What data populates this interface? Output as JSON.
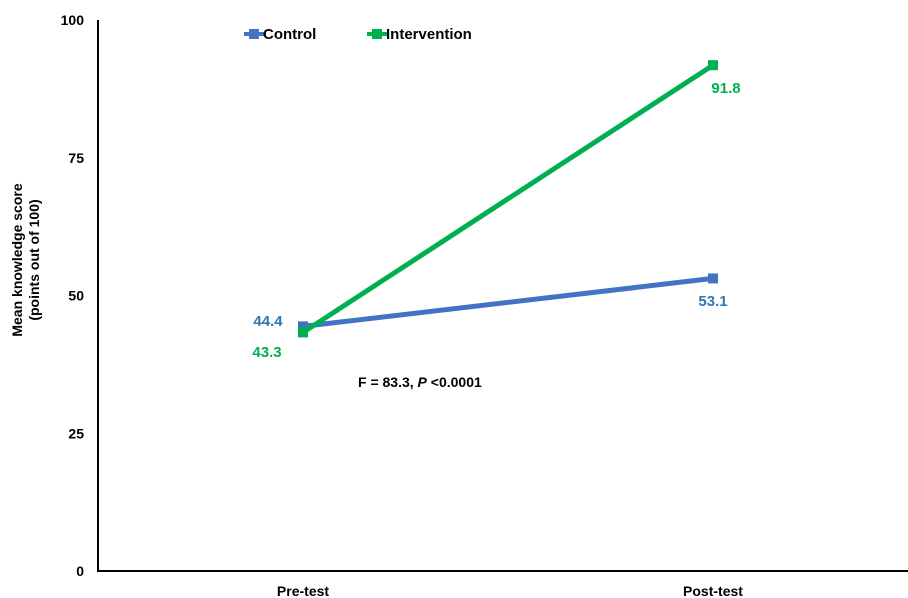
{
  "chart_data": {
    "type": "line",
    "x": [
      "Pre-test",
      "Post-test"
    ],
    "ylabel": [
      "Mean knowledge score",
      "(points out of 100)"
    ],
    "ylim": [
      0,
      100
    ],
    "yticks": [
      0,
      25,
      50,
      75,
      100
    ],
    "grid": false,
    "legend": "top-left",
    "annotation": {
      "prefix": "F = 83.3, ",
      "italic": "P",
      "suffix": " <0.0001"
    },
    "series": [
      {
        "name": "Control",
        "color": "#4472c4",
        "label_color": "#2e75b6",
        "values": [
          44.4,
          53.1
        ],
        "labels": [
          "44.4",
          "53.1"
        ]
      },
      {
        "name": "Intervention",
        "color": "#00b050",
        "label_color": "#00b050",
        "values": [
          43.3,
          91.8
        ],
        "labels": [
          "43.3",
          "91.8"
        ]
      }
    ]
  }
}
